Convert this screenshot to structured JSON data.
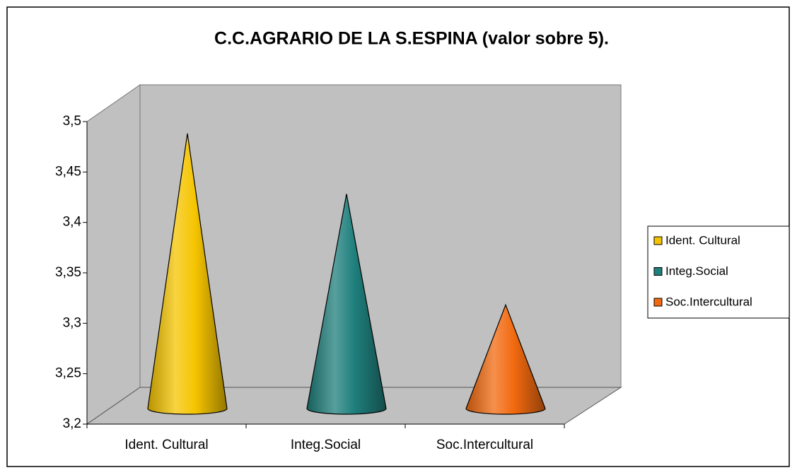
{
  "chart_data": {
    "type": "cone",
    "title": "C.C.AGRARIO DE LA S.ESPINA  (valor sobre 5).",
    "categories": [
      "Ident. Cultural",
      "Integ.Social",
      "Soc.Intercultural"
    ],
    "values": [
      3.47,
      3.41,
      3.3
    ],
    "colors": [
      "#f5c400",
      "#1f7f7c",
      "#f26a10"
    ],
    "ylim": [
      3.2,
      3.5
    ],
    "yticks": [
      {
        "value": 3.2,
        "label": "3,2"
      },
      {
        "value": 3.25,
        "label": "3,25"
      },
      {
        "value": 3.3,
        "label": "3,3"
      },
      {
        "value": 3.35,
        "label": "3,35"
      },
      {
        "value": 3.4,
        "label": "3,4"
      },
      {
        "value": 3.45,
        "label": "3,45"
      },
      {
        "value": 3.5,
        "label": "3,5"
      }
    ],
    "grid": false,
    "legend": "right"
  }
}
